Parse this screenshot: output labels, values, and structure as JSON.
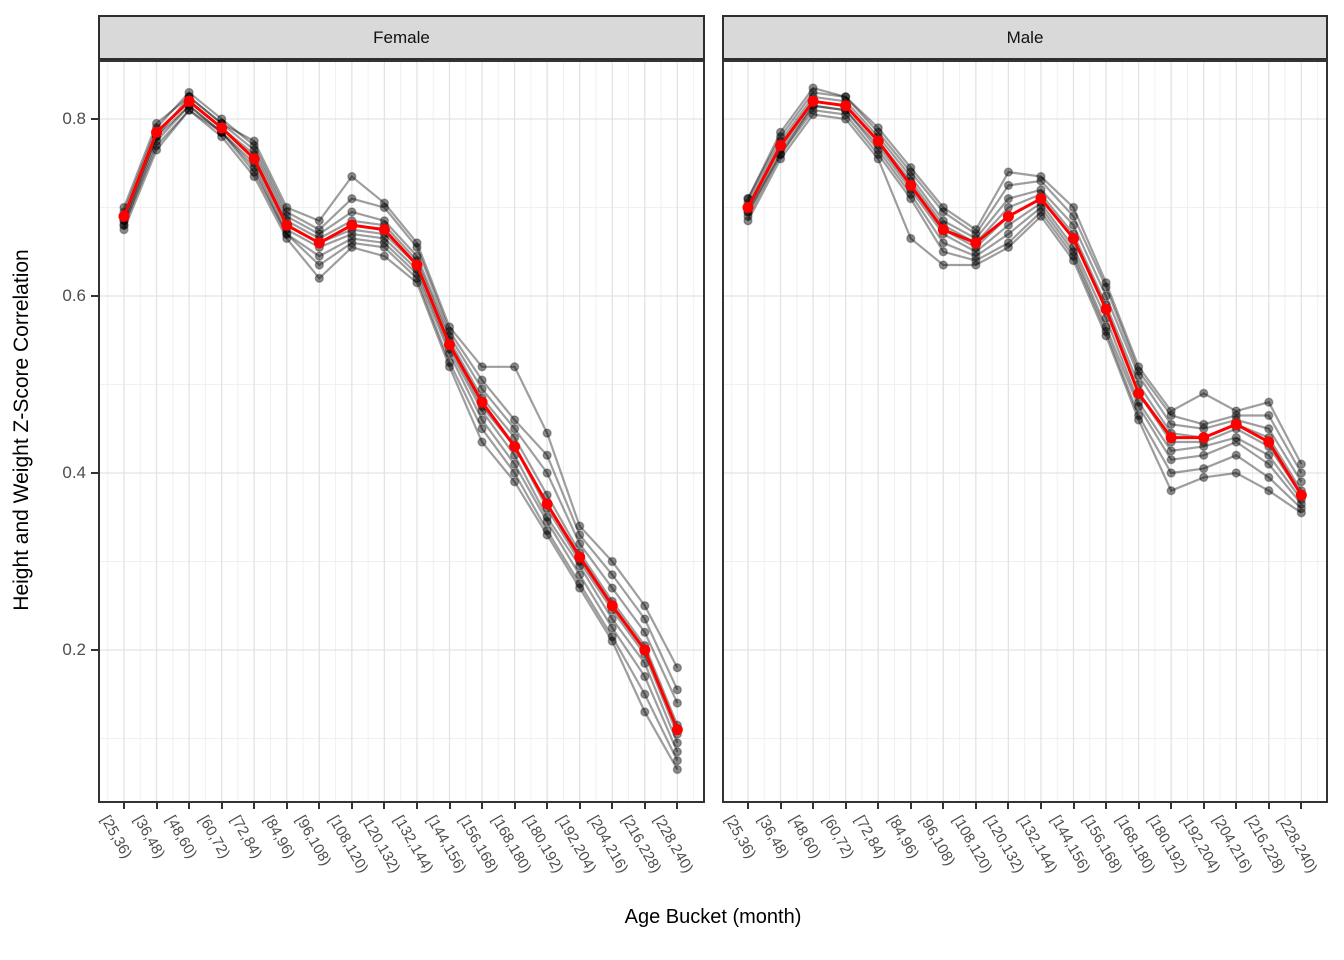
{
  "style": {
    "background": "#FFFFFF",
    "panel_border": "#333333",
    "strip_fill": "#D9D9D9",
    "strip_border": "#2E2E2E",
    "grid_major": "#E3E3E3",
    "grid_minor": "#F0F0F0",
    "tick_color": "#333333",
    "tick_label_color": "#4D4D4D",
    "axis_title_color": "#000000",
    "series_line": "rgba(0,0,0,0.38)",
    "series_point_fill": "rgba(0,0,0,0.45)",
    "series_point_edge": "rgba(0,0,0,0.28)",
    "mean_color": "#FF0000"
  },
  "chart_data": {
    "type": "line",
    "title": "",
    "xlabel": "Age Bucket (month)",
    "ylabel": "Height and Weight Z-Score Correlation",
    "legend_position": "none",
    "grid": {
      "major": true,
      "minor": true
    },
    "ylim_shown": [
      0.027,
      0.867
    ],
    "y_ticks": {
      "values": [
        0.8,
        0.6,
        0.4,
        0.2
      ],
      "labels": [
        "0.8",
        "0.6",
        "0.4",
        "0.2"
      ]
    },
    "categories": [
      "[25,36)",
      "[36,48)",
      "[48,60)",
      "[60,72)",
      "[72,84)",
      "[84,96)",
      "[96,108)",
      "[108,120)",
      "[120,132)",
      "[132,144)",
      "[144,156)",
      "[156,168)",
      "[168,180)",
      "[180,192)",
      "[192,204)",
      "[204,216)",
      "[216,228)",
      "[228,240)"
    ],
    "facets": [
      {
        "label": "Female",
        "mean": {
          "name": "mean",
          "color": "#FF0000",
          "values": [
            0.69,
            0.785,
            0.82,
            0.79,
            0.755,
            0.68,
            0.66,
            0.68,
            0.675,
            0.635,
            0.545,
            0.48,
            0.43,
            0.365,
            0.305,
            0.25,
            0.2,
            0.11
          ]
        },
        "series": [
          {
            "name": "series-1",
            "values": [
              0.7,
              0.795,
              0.825,
              0.795,
              0.775,
              0.7,
              0.685,
              0.735,
              0.705,
              0.66,
              0.565,
              0.52,
              0.52,
              0.445,
              0.34,
              0.3,
              0.25,
              0.18
            ]
          },
          {
            "name": "series-2",
            "values": [
              0.695,
              0.79,
              0.83,
              0.8,
              0.77,
              0.695,
              0.675,
              0.71,
              0.7,
              0.655,
              0.56,
              0.505,
              0.46,
              0.42,
              0.33,
              0.285,
              0.235,
              0.155
            ]
          },
          {
            "name": "series-3",
            "values": [
              0.685,
              0.78,
              0.825,
              0.795,
              0.765,
              0.69,
              0.67,
              0.695,
              0.685,
              0.645,
              0.555,
              0.495,
              0.45,
              0.4,
              0.32,
              0.27,
              0.22,
              0.14
            ]
          },
          {
            "name": "series-4",
            "values": [
              0.69,
              0.785,
              0.82,
              0.79,
              0.76,
              0.685,
              0.665,
              0.685,
              0.68,
              0.64,
              0.55,
              0.485,
              0.44,
              0.375,
              0.31,
              0.255,
              0.205,
              0.115
            ]
          },
          {
            "name": "series-5",
            "values": [
              0.69,
              0.785,
              0.82,
              0.79,
              0.755,
              0.68,
              0.66,
              0.675,
              0.67,
              0.635,
              0.545,
              0.475,
              0.43,
              0.36,
              0.3,
              0.245,
              0.195,
              0.105
            ]
          },
          {
            "name": "series-6",
            "values": [
              0.685,
              0.78,
              0.815,
              0.785,
              0.75,
              0.675,
              0.655,
              0.67,
              0.665,
              0.63,
              0.54,
              0.47,
              0.42,
              0.35,
              0.295,
              0.235,
              0.185,
              0.095
            ]
          },
          {
            "name": "series-7",
            "values": [
              0.68,
              0.775,
              0.815,
              0.785,
              0.745,
              0.67,
              0.645,
              0.665,
              0.66,
              0.625,
              0.535,
              0.46,
              0.41,
              0.345,
              0.285,
              0.225,
              0.17,
              0.085
            ]
          },
          {
            "name": "series-8",
            "values": [
              0.68,
              0.77,
              0.81,
              0.785,
              0.74,
              0.67,
              0.635,
              0.66,
              0.655,
              0.62,
              0.525,
              0.45,
              0.4,
              0.335,
              0.275,
              0.215,
              0.15,
              0.075
            ]
          },
          {
            "name": "series-9",
            "values": [
              0.675,
              0.765,
              0.81,
              0.78,
              0.735,
              0.665,
              0.62,
              0.655,
              0.645,
              0.615,
              0.52,
              0.435,
              0.39,
              0.33,
              0.27,
              0.21,
              0.13,
              0.065
            ]
          }
        ]
      },
      {
        "label": "Male",
        "mean": {
          "name": "mean",
          "color": "#FF0000",
          "values": [
            0.7,
            0.77,
            0.82,
            0.815,
            0.775,
            0.725,
            0.675,
            0.66,
            0.69,
            0.71,
            0.665,
            0.585,
            0.49,
            0.44,
            0.44,
            0.455,
            0.435,
            0.375
          ]
        },
        "series": [
          {
            "name": "series-1",
            "values": [
              0.71,
              0.785,
              0.835,
              0.825,
              0.79,
              0.745,
              0.7,
              0.675,
              0.74,
              0.735,
              0.7,
              0.615,
              0.52,
              0.47,
              0.49,
              0.47,
              0.48,
              0.41
            ]
          },
          {
            "name": "series-2",
            "values": [
              0.71,
              0.78,
              0.83,
              0.825,
              0.785,
              0.74,
              0.695,
              0.67,
              0.725,
              0.73,
              0.69,
              0.61,
              0.515,
              0.465,
              0.455,
              0.465,
              0.465,
              0.4
            ]
          },
          {
            "name": "series-3",
            "values": [
              0.705,
              0.775,
              0.825,
              0.82,
              0.78,
              0.735,
              0.685,
              0.665,
              0.71,
              0.72,
              0.68,
              0.6,
              0.51,
              0.455,
              0.45,
              0.46,
              0.45,
              0.39
            ]
          },
          {
            "name": "series-4",
            "values": [
              0.7,
              0.77,
              0.82,
              0.815,
              0.775,
              0.73,
              0.68,
              0.66,
              0.7,
              0.715,
              0.67,
              0.59,
              0.5,
              0.445,
              0.44,
              0.455,
              0.44,
              0.38
            ]
          },
          {
            "name": "series-5",
            "values": [
              0.7,
              0.77,
              0.82,
              0.815,
              0.775,
              0.725,
              0.675,
              0.655,
              0.69,
              0.71,
              0.665,
              0.585,
              0.49,
              0.435,
              0.435,
              0.45,
              0.43,
              0.375
            ]
          },
          {
            "name": "series-6",
            "values": [
              0.695,
              0.765,
              0.815,
              0.81,
              0.77,
              0.72,
              0.67,
              0.65,
              0.68,
              0.705,
              0.655,
              0.575,
              0.48,
              0.425,
              0.43,
              0.44,
              0.42,
              0.37
            ]
          },
          {
            "name": "series-7",
            "values": [
              0.695,
              0.76,
              0.815,
              0.81,
              0.765,
              0.715,
              0.66,
              0.645,
              0.67,
              0.7,
              0.65,
              0.565,
              0.475,
              0.415,
              0.42,
              0.435,
              0.41,
              0.365
            ]
          },
          {
            "name": "series-8",
            "values": [
              0.69,
              0.76,
              0.81,
              0.805,
              0.76,
              0.71,
              0.65,
              0.64,
              0.66,
              0.695,
              0.645,
              0.56,
              0.465,
              0.4,
              0.405,
              0.42,
              0.395,
              0.36
            ]
          },
          {
            "name": "series-9",
            "values": [
              0.685,
              0.755,
              0.805,
              0.8,
              0.755,
              0.665,
              0.635,
              0.635,
              0.655,
              0.69,
              0.64,
              0.555,
              0.46,
              0.38,
              0.395,
              0.4,
              0.38,
              0.355
            ]
          }
        ]
      }
    ]
  }
}
